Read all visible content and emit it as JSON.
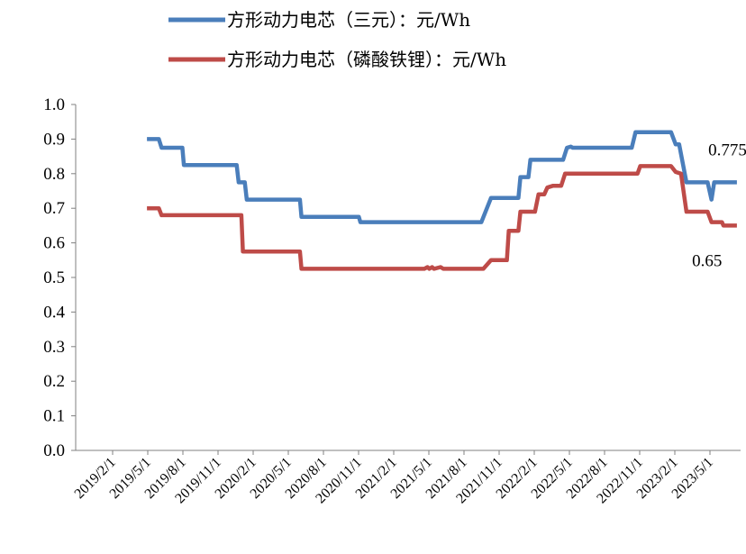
{
  "chart_data": {
    "type": "line",
    "title": "",
    "xlabel": "",
    "ylabel": "",
    "ylim": [
      0.0,
      1.0
    ],
    "yticks": [
      "0.0",
      "0.1",
      "0.2",
      "0.3",
      "0.4",
      "0.5",
      "0.6",
      "0.7",
      "0.8",
      "0.9",
      "1.0"
    ],
    "xticks": [
      "2019/2/1",
      "2019/5/1",
      "2019/8/1",
      "2019/11/1",
      "2020/2/1",
      "2020/5/1",
      "2020/8/1",
      "2020/11/1",
      "2021/2/1",
      "2021/5/1",
      "2021/8/1",
      "2021/11/1",
      "2022/2/1",
      "2022/5/1",
      "2022/8/1",
      "2022/11/1",
      "2023/2/1",
      "2023/5/1"
    ],
    "grid": false,
    "legend_position": "top-center",
    "annotations": [
      {
        "text": "0.775",
        "x": "2023/7/1",
        "y": 0.775,
        "series": 0
      },
      {
        "text": "0.65",
        "x": "2023/7/1",
        "y": 0.65,
        "series": 1
      }
    ],
    "series": [
      {
        "name": "方形动力电芯（三元）：元/Wh",
        "color": "#4a7ebb",
        "points": [
          [
            "2019/5/1",
            0.9
          ],
          [
            "2019/6/1",
            0.9
          ],
          [
            "2019/6/8",
            0.875
          ],
          [
            "2019/8/1",
            0.875
          ],
          [
            "2019/8/5",
            0.825
          ],
          [
            "2019/12/20",
            0.825
          ],
          [
            "2019/12/25",
            0.775
          ],
          [
            "2020/1/10",
            0.775
          ],
          [
            "2020/1/15",
            0.725
          ],
          [
            "2020/6/1",
            0.725
          ],
          [
            "2020/6/5",
            0.675
          ],
          [
            "2020/11/1",
            0.675
          ],
          [
            "2020/11/5",
            0.66
          ],
          [
            "2021/9/15",
            0.66
          ],
          [
            "2021/10/10",
            0.73
          ],
          [
            "2021/12/20",
            0.73
          ],
          [
            "2021/12/25",
            0.79
          ],
          [
            "2022/1/15",
            0.79
          ],
          [
            "2022/1/20",
            0.84
          ],
          [
            "2022/4/15",
            0.84
          ],
          [
            "2022/4/25",
            0.875
          ],
          [
            "2022/5/5",
            0.878
          ],
          [
            "2022/5/10",
            0.875
          ],
          [
            "2022/10/10",
            0.875
          ],
          [
            "2022/10/20",
            0.92
          ],
          [
            "2023/1/20",
            0.92
          ],
          [
            "2023/2/1",
            0.885
          ],
          [
            "2023/2/10",
            0.885
          ],
          [
            "2023/3/1",
            0.775
          ],
          [
            "2023/4/25",
            0.775
          ],
          [
            "2023/5/5",
            0.725
          ],
          [
            "2023/5/12",
            0.775
          ],
          [
            "2023/7/10",
            0.775
          ]
        ]
      },
      {
        "name": "方形动力电芯（磷酸铁锂）：元/Wh",
        "color": "#be4b48",
        "points": [
          [
            "2019/5/1",
            0.7
          ],
          [
            "2019/6/1",
            0.7
          ],
          [
            "2019/6/8",
            0.68
          ],
          [
            "2020/1/1",
            0.68
          ],
          [
            "2020/1/5",
            0.575
          ],
          [
            "2020/6/1",
            0.575
          ],
          [
            "2020/6/5",
            0.525
          ],
          [
            "2021/4/20",
            0.525
          ],
          [
            "2021/4/28",
            0.53
          ],
          [
            "2021/5/3",
            0.525
          ],
          [
            "2021/5/10",
            0.53
          ],
          [
            "2021/5/15",
            0.525
          ],
          [
            "2021/6/1",
            0.53
          ],
          [
            "2021/6/8",
            0.525
          ],
          [
            "2021/9/20",
            0.525
          ],
          [
            "2021/10/10",
            0.55
          ],
          [
            "2021/11/20",
            0.55
          ],
          [
            "2021/11/25",
            0.635
          ],
          [
            "2021/12/20",
            0.635
          ],
          [
            "2021/12/25",
            0.69
          ],
          [
            "2022/2/1",
            0.69
          ],
          [
            "2022/2/10",
            0.74
          ],
          [
            "2022/2/25",
            0.74
          ],
          [
            "2022/3/5",
            0.76
          ],
          [
            "2022/3/20",
            0.765
          ],
          [
            "2022/4/10",
            0.765
          ],
          [
            "2022/4/20",
            0.8
          ],
          [
            "2022/10/25",
            0.8
          ],
          [
            "2022/11/1",
            0.822
          ],
          [
            "2023/1/20",
            0.822
          ],
          [
            "2023/2/1",
            0.805
          ],
          [
            "2023/2/15",
            0.8
          ],
          [
            "2023/3/1",
            0.69
          ],
          [
            "2023/4/25",
            0.69
          ],
          [
            "2023/5/5",
            0.66
          ],
          [
            "2023/6/1",
            0.66
          ],
          [
            "2023/6/5",
            0.65
          ],
          [
            "2023/7/10",
            0.65
          ]
        ]
      }
    ]
  }
}
